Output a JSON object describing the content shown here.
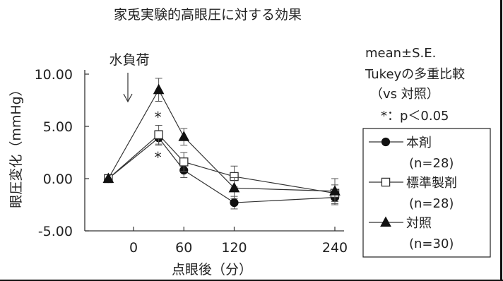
{
  "chart_data": {
    "type": "line",
    "title": "家兎実験的高眼圧に対する効果",
    "xlabel": "点眼後（分）",
    "ylabel": "眼圧変化（mmHg）",
    "x": [
      -30,
      30,
      60,
      120,
      240
    ],
    "xticks": [
      "0",
      "60",
      "120",
      "240"
    ],
    "yticks": [
      "10.00",
      "5.00",
      "0.00",
      "-5.00"
    ],
    "ylim": [
      -5,
      10
    ],
    "series": [
      {
        "name": "本剤",
        "n": "(n=28)",
        "marker": "filled-circle",
        "values": [
          0.0,
          3.9,
          0.8,
          -2.3,
          -1.8
        ],
        "errors": [
          0.0,
          0.7,
          0.7,
          0.6,
          0.7
        ]
      },
      {
        "name": "標準製剤",
        "n": "(n=28)",
        "marker": "open-square",
        "values": [
          0.0,
          4.2,
          1.6,
          0.2,
          -1.4
        ],
        "errors": [
          0.0,
          0.9,
          0.9,
          1.0,
          0.8
        ]
      },
      {
        "name": "対照",
        "n": "(n=30)",
        "marker": "filled-triangle",
        "values": [
          0.0,
          8.5,
          4.0,
          -0.9,
          -1.2
        ],
        "errors": [
          0.0,
          1.1,
          0.8,
          1.0,
          1.2
        ]
      }
    ],
    "annotations": {
      "arrow_label": "水負荷",
      "significance_marks": [
        "*",
        "*"
      ],
      "stats_line1": "mean±S.E.",
      "stats_line2": "Tukeyの多重比較",
      "stats_line3": "（vs 対照）",
      "stats_line4": "*：p＜0.05"
    },
    "legend_position": "right"
  }
}
